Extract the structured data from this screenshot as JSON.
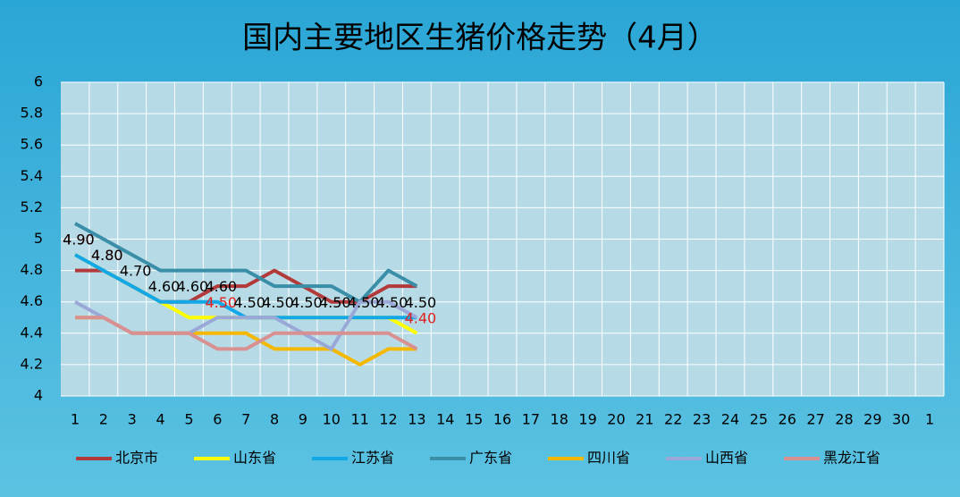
{
  "chart_data": {
    "type": "line",
    "title": "国内主要地区生猪价格走势（4月）",
    "categories": [
      "1",
      "2",
      "3",
      "4",
      "5",
      "6",
      "7",
      "8",
      "9",
      "10",
      "11",
      "12",
      "13",
      "14",
      "15",
      "16",
      "17",
      "18",
      "19",
      "20",
      "21",
      "22",
      "23",
      "24",
      "25",
      "26",
      "27",
      "28",
      "29",
      "30",
      "1"
    ],
    "ylim": [
      4,
      6
    ],
    "yticks": [
      4,
      4.2,
      4.4,
      4.6,
      4.8,
      5,
      5.2,
      5.4,
      5.6,
      5.8,
      6
    ],
    "grid": true,
    "legend": "bottom",
    "series": [
      {
        "name": "北京市",
        "color": "#b23a3a",
        "values": [
          4.8,
          4.8,
          4.7,
          4.6,
          4.6,
          4.7,
          4.7,
          4.8,
          4.7,
          4.6,
          4.6,
          4.7,
          4.7,
          null,
          null,
          null,
          null,
          null,
          null,
          null,
          null,
          null,
          null,
          null,
          null,
          null,
          null,
          null,
          null,
          null,
          null
        ]
      },
      {
        "name": "山东省",
        "color": "#ffff00",
        "label_color": "#e02020",
        "values": [
          4.9,
          4.8,
          4.7,
          4.6,
          4.5,
          4.5,
          4.5,
          4.5,
          4.5,
          4.5,
          4.5,
          4.5,
          4.4,
          null,
          null,
          null,
          null,
          null,
          null,
          null,
          null,
          null,
          null,
          null,
          null,
          null,
          null,
          null,
          null,
          null,
          null
        ],
        "value_labels": [
          "4.90",
          "4.80",
          null,
          null,
          null,
          "4.50",
          null,
          null,
          null,
          null,
          null,
          null,
          "4.40",
          null,
          null,
          null,
          null,
          null,
          null,
          null,
          null,
          null,
          null,
          null,
          null,
          null,
          null,
          null,
          null,
          null,
          null
        ]
      },
      {
        "name": "江苏省",
        "color": "#12a8e8",
        "label_color": "#000000",
        "values": [
          4.9,
          4.8,
          4.7,
          4.6,
          4.6,
          4.6,
          4.5,
          4.5,
          4.5,
          4.5,
          4.5,
          4.5,
          4.5,
          null,
          null,
          null,
          null,
          null,
          null,
          null,
          null,
          null,
          null,
          null,
          null,
          null,
          null,
          null,
          null,
          null,
          null
        ],
        "value_labels": [
          "4.90",
          "4.80",
          "4.70",
          "4.60",
          "4.60",
          "4.60",
          "4.50",
          "4.50",
          "4.50",
          "4.50",
          "4.50",
          "4.50",
          "4.50",
          null,
          null,
          null,
          null,
          null,
          null,
          null,
          null,
          null,
          null,
          null,
          null,
          null,
          null,
          null,
          null,
          null,
          null
        ]
      },
      {
        "name": "广东省",
        "color": "#3a8ea8",
        "values": [
          5.1,
          5.0,
          4.9,
          4.8,
          4.8,
          4.8,
          4.8,
          4.7,
          4.7,
          4.7,
          4.6,
          4.8,
          4.7,
          null,
          null,
          null,
          null,
          null,
          null,
          null,
          null,
          null,
          null,
          null,
          null,
          null,
          null,
          null,
          null,
          null,
          null
        ]
      },
      {
        "name": "四川省",
        "color": "#f5b800",
        "values": [
          4.5,
          4.5,
          4.4,
          4.4,
          4.4,
          4.4,
          4.4,
          4.3,
          4.3,
          4.3,
          4.2,
          4.3,
          4.3,
          null,
          null,
          null,
          null,
          null,
          null,
          null,
          null,
          null,
          null,
          null,
          null,
          null,
          null,
          null,
          null,
          null,
          null
        ]
      },
      {
        "name": "山西省",
        "color": "#9aa8d8",
        "values": [
          4.6,
          4.5,
          4.4,
          4.4,
          4.4,
          4.5,
          4.5,
          4.5,
          4.4,
          4.3,
          4.6,
          4.6,
          4.5,
          null,
          null,
          null,
          null,
          null,
          null,
          null,
          null,
          null,
          null,
          null,
          null,
          null,
          null,
          null,
          null,
          null,
          null
        ]
      },
      {
        "name": "黑龙江省",
        "color": "#d89090",
        "values": [
          4.5,
          4.5,
          4.4,
          4.4,
          4.4,
          4.3,
          4.3,
          4.4,
          4.4,
          4.4,
          4.4,
          4.4,
          4.3,
          null,
          null,
          null,
          null,
          null,
          null,
          null,
          null,
          null,
          null,
          null,
          null,
          null,
          null,
          null,
          null,
          null,
          null
        ]
      }
    ]
  }
}
